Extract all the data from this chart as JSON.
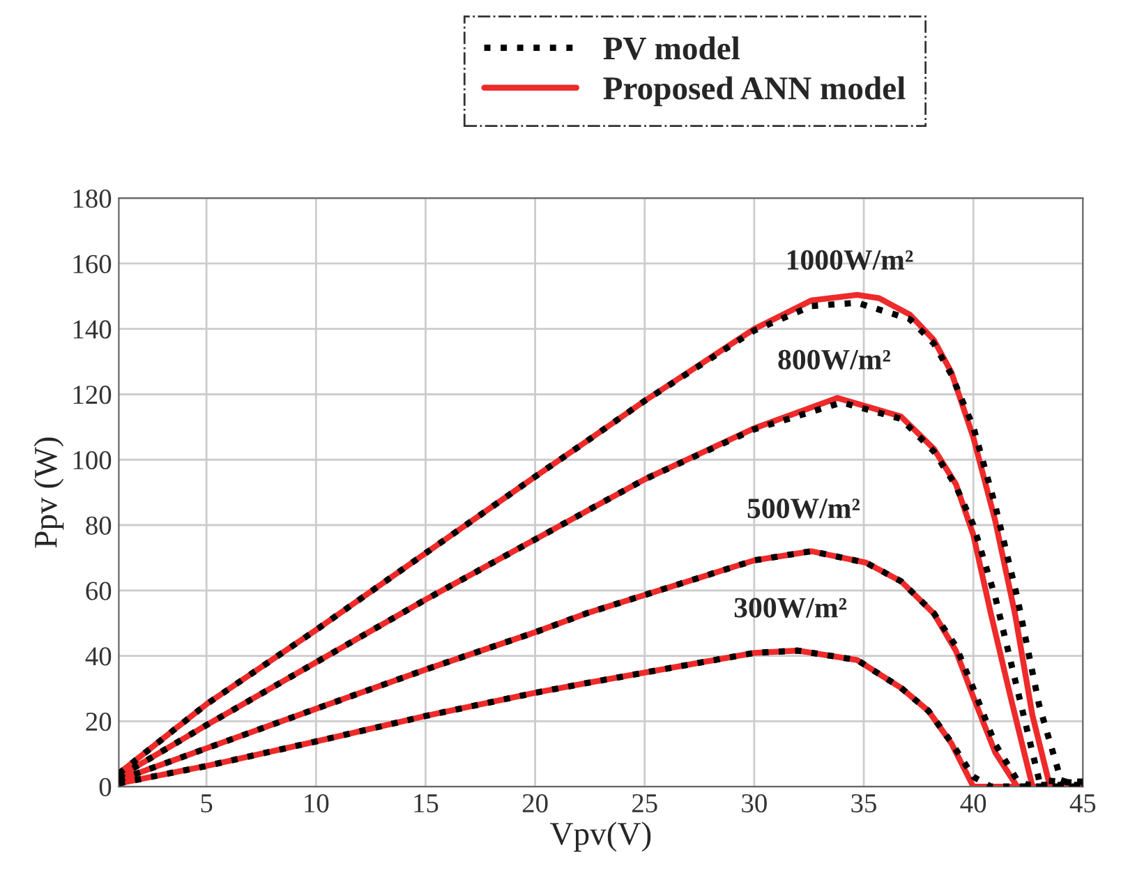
{
  "chart_data": {
    "type": "line",
    "xlabel": "Vpv(V)",
    "ylabel": "Ppv (W)",
    "xlim": [
      1,
      45
    ],
    "xticks": [
      5,
      10,
      15,
      20,
      25,
      30,
      35,
      40,
      45
    ],
    "ylim": [
      0,
      180
    ],
    "yticks": [
      0,
      20,
      40,
      60,
      80,
      100,
      120,
      140,
      160,
      180
    ],
    "grid": true,
    "legend": "top",
    "marker": "none",
    "series": [
      {
        "name": "PV model",
        "color": "#000000",
        "line_style": "dotted",
        "x": [
          1,
          5,
          10,
          15,
          20,
          22.3,
          25,
          30,
          32.6,
          34.7,
          37.1,
          38.2,
          39,
          40,
          41,
          42,
          43,
          44,
          44.2,
          45
        ],
        "values": [
          4,
          25.2,
          47.9,
          71.4,
          94.8,
          105.4,
          118,
          139.5,
          147,
          148,
          143,
          135.5,
          126,
          110,
          86,
          58,
          25,
          2,
          1.5,
          1.5
        ]
      },
      {
        "color": "#000000",
        "line_style": "dotted",
        "x": [
          1,
          5,
          10,
          15,
          20,
          22.3,
          25,
          30,
          34,
          36.7,
          38.2,
          39.2,
          40,
          41,
          42,
          43,
          45
        ],
        "values": [
          3,
          18.8,
          38,
          57.2,
          75.6,
          84.1,
          94,
          109.3,
          117.5,
          112.5,
          102.5,
          92,
          80,
          58,
          30,
          2,
          1
        ]
      },
      {
        "color": "#000000",
        "line_style": "dotted",
        "x": [
          1,
          5,
          10,
          15,
          20,
          22.3,
          30,
          32.6,
          35.1,
          36.7,
          38.2,
          39.2,
          40,
          41,
          42,
          42.5,
          45
        ],
        "values": [
          2,
          11.7,
          23.8,
          35.8,
          47.2,
          52.9,
          69.2,
          72,
          68.5,
          62.8,
          53,
          43,
          30,
          13,
          2,
          0.5,
          0.5
        ]
      },
      {
        "color": "#000000",
        "line_style": "dotted",
        "x": [
          1,
          5,
          10,
          15,
          20,
          22.3,
          30,
          32,
          34.7,
          36.7,
          37.96,
          39,
          40,
          40.8,
          45
        ],
        "values": [
          1,
          6.3,
          13.8,
          21.6,
          28.7,
          31.6,
          40.9,
          41.6,
          38.7,
          30.2,
          23.1,
          13.5,
          3,
          0,
          0
        ]
      },
      {
        "name": "Proposed ANN model",
        "color": "#ee2a2a",
        "line_style": "solid",
        "x": [
          1,
          5,
          10,
          15,
          20,
          22.3,
          25,
          30,
          32.6,
          34.7,
          35.7,
          37.1,
          38.2,
          39,
          40,
          41,
          41.9,
          42.7,
          43.5,
          45
        ],
        "values": [
          4,
          25.2,
          47.9,
          71.4,
          94.8,
          105.4,
          118,
          140,
          148.7,
          150.4,
          149.4,
          144.4,
          136.6,
          126.7,
          106.8,
          81.3,
          52.9,
          21.7,
          0,
          0
        ]
      },
      {
        "color": "#ee2a2a",
        "line_style": "solid",
        "x": [
          1,
          5,
          10,
          15,
          20,
          22.3,
          25,
          30,
          33.8,
          36.7,
          38.2,
          39.2,
          40,
          40.8,
          41.7,
          42.7,
          45
        ],
        "values": [
          3,
          18.8,
          38,
          57.2,
          75.6,
          84.1,
          94,
          109.6,
          118.9,
          113.2,
          103.3,
          92.6,
          77,
          52.9,
          27.4,
          0,
          0
        ]
      },
      {
        "color": "#ee2a2a",
        "line_style": "solid",
        "x": [
          1,
          5,
          10,
          15,
          20,
          22.3,
          30,
          32.6,
          35.1,
          36.7,
          38.2,
          39.2,
          40,
          41,
          42,
          45
        ],
        "values": [
          2,
          11.7,
          23.8,
          35.8,
          47.2,
          52.9,
          69.2,
          72,
          68.5,
          62.8,
          52.9,
          41.6,
          27.4,
          10.4,
          0,
          0
        ]
      },
      {
        "color": "#ee2a2a",
        "line_style": "solid",
        "x": [
          1,
          5,
          10,
          15,
          20,
          22.3,
          30,
          32,
          34.7,
          36.7,
          37.96,
          39,
          40,
          45
        ],
        "values": [
          1,
          6.3,
          13.8,
          21.6,
          28.7,
          31.6,
          40.9,
          41.6,
          38.7,
          30.2,
          23.1,
          13.2,
          0,
          0
        ]
      }
    ],
    "annotations": [
      "1000W/m²",
      "800W/m²",
      "500W/m²",
      "300W/m²"
    ]
  }
}
